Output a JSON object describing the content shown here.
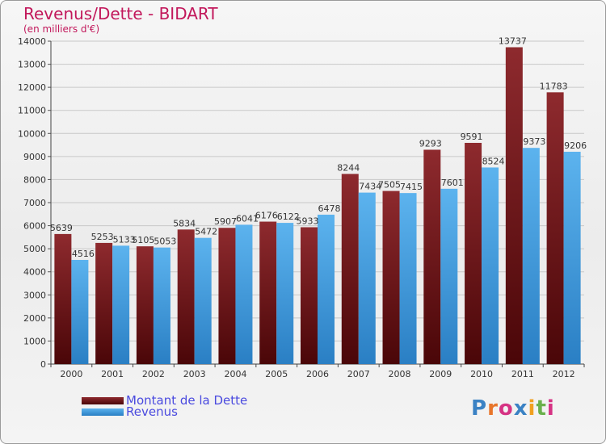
{
  "chart_data": {
    "type": "bar",
    "title": "Revenus/Dette - BIDART",
    "subtitle": "(en milliers d'€)",
    "categories": [
      "2000",
      "2001",
      "2002",
      "2003",
      "2004",
      "2005",
      "2006",
      "2007",
      "2008",
      "2009",
      "2010",
      "2011",
      "2012"
    ],
    "series": [
      {
        "name": "Montant de la Dette",
        "color": "#7a1a1f",
        "values": [
          5639,
          5253,
          5105,
          5834,
          5907,
          6176,
          5933,
          8244,
          7505,
          9293,
          9591,
          13737,
          11783
        ]
      },
      {
        "name": "Revenus",
        "color": "#4aa3e6",
        "values": [
          4516,
          5133,
          5053,
          5472,
          6041,
          6122,
          6478,
          7434,
          7415,
          7601,
          8524,
          9373,
          9206
        ]
      }
    ],
    "ylim": [
      0,
      14000
    ],
    "yticks": [
      0,
      1000,
      2000,
      3000,
      4000,
      5000,
      6000,
      7000,
      8000,
      9000,
      10000,
      11000,
      12000,
      13000,
      14000
    ],
    "grid": true,
    "legend_position": "bottom-left"
  },
  "brand": {
    "logo_text": "Proxiti",
    "letter_colors": [
      "#3b82c4",
      "#e8762c",
      "#d63384",
      "#3b82c4",
      "#f0a020",
      "#6ab04c",
      "#d63384"
    ]
  }
}
